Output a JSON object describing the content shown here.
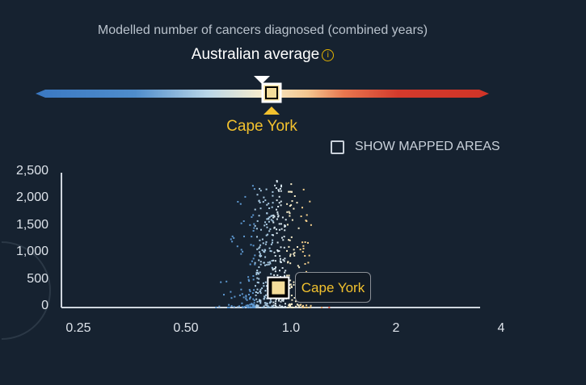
{
  "header": {
    "subtitle": "Modelled number of cancers diagnosed (combined years)",
    "average_label": "Australian average",
    "info_icon": "info-icon"
  },
  "scale": {
    "selected_label": "Cape York",
    "colors": {
      "low": "#3a78c2",
      "mid": "#f7eccc",
      "high": "#d43a2c"
    }
  },
  "controls": {
    "show_mapped_label": "SHOW MAPPED AREAS",
    "show_mapped_checked": false
  },
  "chart_data": {
    "type": "scatter",
    "title": "",
    "xlabel": "",
    "ylabel": "",
    "x_scale": "log",
    "x_ticks": [
      "0.25",
      "0.50",
      "1.0",
      "2",
      "4"
    ],
    "y_ticks": [
      "2,500",
      "2,000",
      "1,500",
      "1,000",
      "500",
      "0"
    ],
    "xlim": [
      0.25,
      4
    ],
    "ylim": [
      0,
      2500
    ],
    "highlight": {
      "name": "Cape York",
      "x": 0.92,
      "y": 350
    },
    "cluster": {
      "center_x": 0.88,
      "x_spread_log2": 0.17,
      "y_max": 2350,
      "count": 520
    },
    "colors": {
      "highlight_fill": "#f5dd9a",
      "highlight_border": "#ffffff",
      "accent": "#f2c12e"
    }
  }
}
